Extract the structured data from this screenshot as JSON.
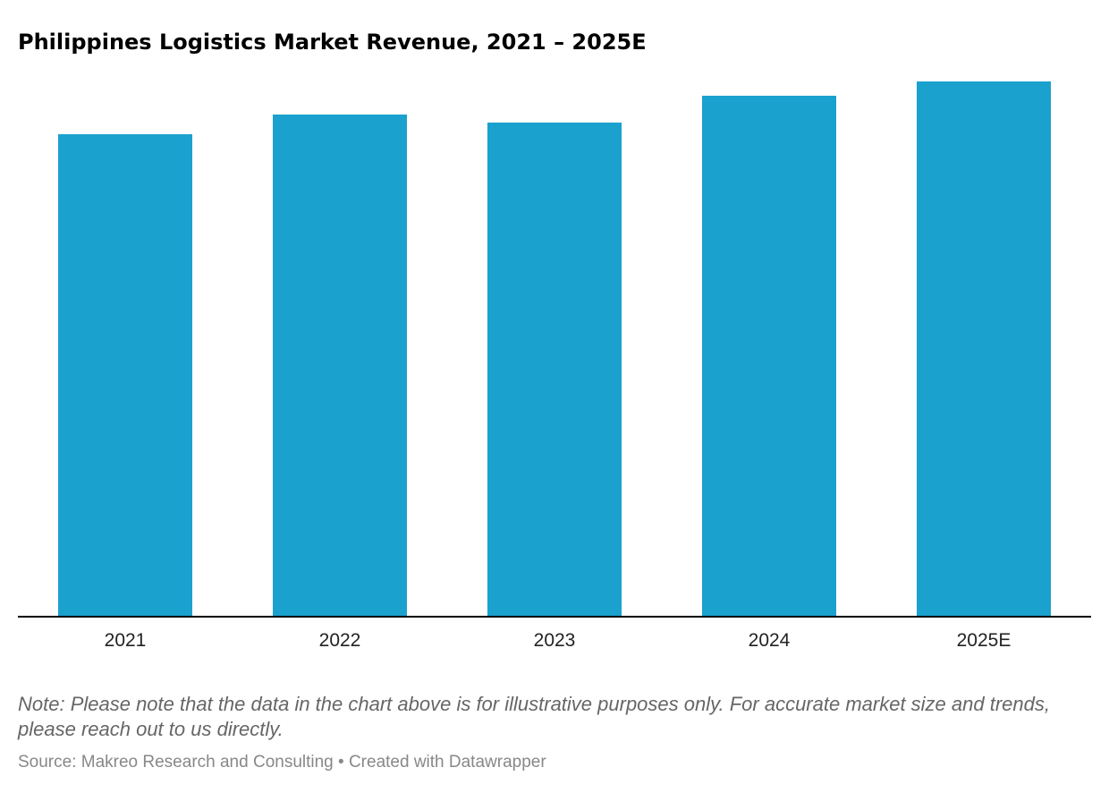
{
  "chart_data": {
    "type": "bar",
    "title": "Philippines Logistics Market Revenue, 2021 – 2025E",
    "categories": [
      "2021",
      "2022",
      "2023",
      "2024",
      "2025E"
    ],
    "values": [
      540,
      562,
      553,
      583,
      599
    ],
    "ylim": [
      0,
      600
    ],
    "grid": false,
    "bar_color": "#1aa1ce"
  },
  "note": "Note: Please note that the data in the chart above is for illustrative purposes only. For accurate market size and trends, please reach out to us directly.",
  "source": "Source: Makreo Research and Consulting • Created with Datawrapper"
}
